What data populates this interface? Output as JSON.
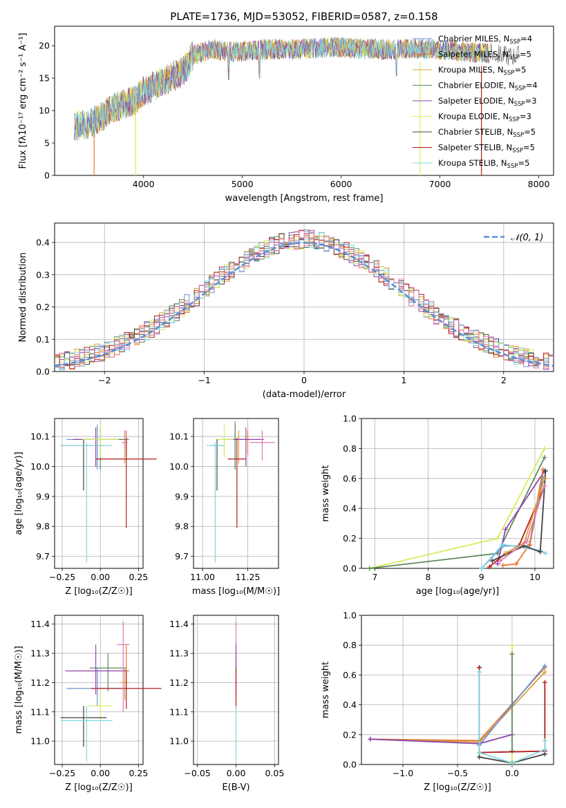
{
  "figure_title": "PLATE=1736, MJD=53052, FIBERID=0587, z=0.158",
  "colors": {
    "chabrier_miles": "#6b8fd6",
    "salpeter_miles": "#e8762d",
    "kroupa_miles": "#d9a03a",
    "chabrier_elodie": "#5d8a5d",
    "salpeter_elodie": "#8e44ad",
    "kroupa_elodie": "#d4ec5a",
    "chabrier_stelib": "#404040",
    "salpeter_stelib": "#b01c1c",
    "kroupa_stelib": "#7fd6de",
    "extra_pink": "#e07ab0",
    "gaussian": "#5b8ed6"
  },
  "chart_data": [
    {
      "id": "spectrum",
      "type": "line",
      "xlabel": "wavelength [Angstrom, rest frame]",
      "ylabel": "Flux [fλ10⁻¹⁷ erg cm⁻² s⁻¹ A⁻¹]",
      "xlim": [
        3100,
        8150
      ],
      "ylim": [
        0,
        23
      ],
      "xticks": [
        "4000",
        "5000",
        "6000",
        "7000",
        "8000"
      ],
      "yticks": [
        "0",
        "5",
        "10",
        "15",
        "20"
      ],
      "legend_position": "right",
      "data_envelope": {
        "x": [
          3300,
          3500,
          3700,
          3900,
          4000,
          4200,
          4400,
          4500,
          4700,
          4900,
          5100,
          5300,
          5500,
          5700,
          5900,
          6100,
          6300,
          6500,
          6700,
          6900,
          7100,
          7300,
          7500,
          7700
        ],
        "y": [
          7.5,
          8.2,
          10.5,
          11.5,
          13.0,
          14.5,
          16.0,
          18.5,
          19.5,
          19.0,
          19.3,
          19.5,
          19.4,
          19.6,
          19.8,
          19.6,
          19.5,
          19.4,
          19.6,
          19.5,
          19.3,
          19.0,
          18.8,
          18.5
        ]
      },
      "series": [
        {
          "name": "Chabrier MILES, N",
          "sub": "SSP",
          "suffix": "=4",
          "color_key": "chabrier_miles"
        },
        {
          "name": "Salpeter MILES, N",
          "sub": "SSP",
          "suffix": "=5",
          "color_key": "salpeter_miles"
        },
        {
          "name": "Kroupa MILES, N",
          "sub": "SSP",
          "suffix": "=5",
          "color_key": "kroupa_miles"
        },
        {
          "name": "Chabrier ELODIE, N",
          "sub": "SSP",
          "suffix": "=4",
          "color_key": "chabrier_elodie"
        },
        {
          "name": "Salpeter ELODIE, N",
          "sub": "SSP",
          "suffix": "=3",
          "color_key": "salpeter_elodie"
        },
        {
          "name": "Kroupa ELODIE, N",
          "sub": "SSP",
          "suffix": "=3",
          "color_key": "kroupa_elodie"
        },
        {
          "name": "Chabrier STELIB, N",
          "sub": "SSP",
          "suffix": "=5",
          "color_key": "chabrier_stelib"
        },
        {
          "name": "Salpeter STELIB, N",
          "sub": "SSP",
          "suffix": "=5",
          "color_key": "salpeter_stelib"
        },
        {
          "name": "Kroupa STELIB, N",
          "sub": "SSP",
          "suffix": "=5",
          "color_key": "kroupa_stelib"
        }
      ]
    },
    {
      "id": "residuals",
      "type": "line",
      "xlabel": "(data-model)/error",
      "ylabel": "Normed distribution",
      "xlim": [
        -2.5,
        2.5
      ],
      "ylim": [
        0,
        0.46
      ],
      "xticks": [
        "−2",
        "−1",
        "0",
        "1",
        "2"
      ],
      "yticks": [
        "0.0",
        "0.1",
        "0.2",
        "0.3",
        "0.4"
      ],
      "grid": true,
      "legend": "𝒩(0, 1)",
      "legend_position": "upper right",
      "bin_width": 0.1,
      "bin_start": -2.5,
      "base_heights": [
        0.03,
        0.03,
        0.03,
        0.04,
        0.04,
        0.05,
        0.05,
        0.06,
        0.07,
        0.08,
        0.09,
        0.1,
        0.11,
        0.12,
        0.13,
        0.15,
        0.17,
        0.18,
        0.19,
        0.2,
        0.22,
        0.23,
        0.25,
        0.26,
        0.28,
        0.29,
        0.31,
        0.32,
        0.33,
        0.34,
        0.35,
        0.36,
        0.37,
        0.37,
        0.38,
        0.38,
        0.39,
        0.39,
        0.39,
        0.39,
        0.4,
        0.39,
        0.39,
        0.39,
        0.38,
        0.38,
        0.37,
        0.37,
        0.36,
        0.35,
        0.34,
        0.33,
        0.32,
        0.31,
        0.29,
        0.28,
        0.26,
        0.25,
        0.23,
        0.22,
        0.2,
        0.19,
        0.18,
        0.17,
        0.15,
        0.14,
        0.12,
        0.11,
        0.1,
        0.09,
        0.08,
        0.07,
        0.07,
        0.06,
        0.05,
        0.05,
        0.04,
        0.04,
        0.03,
        0.03,
        0.03,
        0.03,
        0.02,
        0.02,
        0.02,
        0.02,
        0.02,
        0.02,
        0.02,
        0.02,
        0.02,
        0.02,
        0.02,
        0.02,
        0.02,
        0.02,
        0.02,
        0.02,
        0.02,
        0.02
      ],
      "gaussian": {
        "mean": 0,
        "sigma": 1
      }
    },
    {
      "id": "age_vs_Z",
      "type": "scatter",
      "xlabel": "Z [log₁₀(Z/Z☉)]",
      "ylabel": "age  [log₁₀(age/yr)]",
      "xlim": [
        -0.3,
        0.28
      ],
      "ylim": [
        9.66,
        10.16
      ],
      "xticks": [
        "−0.25",
        "0.00",
        "0.25"
      ],
      "yticks": [
        "9.7",
        "9.8",
        "9.9",
        "10.0",
        "10.1"
      ],
      "grid": true,
      "points": [
        {
          "x": -0.02,
          "y": 10.09,
          "xerr": 0.2,
          "yerr_lo": 0.1,
          "yerr_hi": 0.05,
          "color_key": "chabrier_miles"
        },
        {
          "x": 0.17,
          "y": 10.09,
          "xerr": 0.02,
          "yerr_lo": 0.05,
          "yerr_hi": 0.03,
          "color_key": "salpeter_miles"
        },
        {
          "x": 0.16,
          "y": 10.09,
          "xerr": 0.03,
          "yerr_lo": 0.08,
          "yerr_hi": 0.03,
          "color_key": "kroupa_miles"
        },
        {
          "x": 0.0,
          "y": 10.09,
          "xerr": 0.18,
          "yerr_lo": 0.1,
          "yerr_hi": 0.04,
          "color_key": "chabrier_elodie"
        },
        {
          "x": -0.03,
          "y": 10.09,
          "xerr": 0.15,
          "yerr_lo": 0.09,
          "yerr_hi": 0.04,
          "color_key": "salpeter_elodie"
        },
        {
          "x": 0.0,
          "y": 10.09,
          "xerr": 0.12,
          "yerr_lo": 0.06,
          "yerr_hi": 0.05,
          "color_key": "kroupa_elodie"
        },
        {
          "x": -0.11,
          "y": 10.07,
          "xerr": 0.15,
          "yerr_lo": 0.15,
          "yerr_hi": 0.02,
          "color_key": "chabrier_stelib"
        },
        {
          "x": 0.17,
          "y": 10.025,
          "xerr": 0.2,
          "yerr_lo": 0.23,
          "yerr_hi": 0.07,
          "color_key": "salpeter_stelib"
        },
        {
          "x": -0.09,
          "y": 10.07,
          "xerr": 0.17,
          "yerr_lo": 0.39,
          "yerr_hi": 0.01,
          "color_key": "kroupa_stelib"
        },
        {
          "x": 0.16,
          "y": 10.08,
          "xerr": 0.02,
          "yerr_lo": 0.02,
          "yerr_hi": 0.04,
          "color_key": "extra_pink"
        }
      ]
    },
    {
      "id": "age_vs_mass",
      "type": "scatter",
      "xlabel": "mass [log₁₀(M/M☉)]",
      "ylabel": "",
      "xlim": [
        10.95,
        11.42
      ],
      "ylim": [
        9.66,
        10.16
      ],
      "xticks": [
        "11.00",
        "11.25"
      ],
      "yticks": [
        "9.7",
        "9.8",
        "9.9",
        "10.0",
        "10.1"
      ],
      "grid": true,
      "points": [
        {
          "x": 11.18,
          "y": 10.09,
          "xerr": 0.08,
          "yerr_lo": 0.1,
          "yerr_hi": 0.05,
          "color_key": "chabrier_miles"
        },
        {
          "x": 11.25,
          "y": 10.09,
          "xerr": 0.07,
          "yerr_lo": 0.05,
          "yerr_hi": 0.03,
          "color_key": "salpeter_miles"
        },
        {
          "x": 11.2,
          "y": 10.09,
          "xerr": 0.06,
          "yerr_lo": 0.08,
          "yerr_hi": 0.03,
          "color_key": "kroupa_miles"
        },
        {
          "x": 11.18,
          "y": 10.09,
          "xerr": 0.07,
          "yerr_lo": 0.1,
          "yerr_hi": 0.06,
          "color_key": "chabrier_elodie"
        },
        {
          "x": 11.24,
          "y": 10.09,
          "xerr": 0.1,
          "yerr_lo": 0.09,
          "yerr_hi": 0.04,
          "color_key": "salpeter_elodie"
        },
        {
          "x": 11.12,
          "y": 10.09,
          "xerr": 0.05,
          "yerr_lo": 0.06,
          "yerr_hi": 0.05,
          "color_key": "kroupa_elodie"
        },
        {
          "x": 11.08,
          "y": 10.07,
          "xerr": 0.04,
          "yerr_lo": 0.15,
          "yerr_hi": 0.02,
          "color_key": "chabrier_stelib"
        },
        {
          "x": 11.19,
          "y": 10.025,
          "xerr": 0.05,
          "yerr_lo": 0.23,
          "yerr_hi": 0.07,
          "color_key": "salpeter_stelib"
        },
        {
          "x": 11.07,
          "y": 10.07,
          "xerr": 0.05,
          "yerr_lo": 0.39,
          "yerr_hi": 0.01,
          "color_key": "kroupa_stelib"
        },
        {
          "x": 11.33,
          "y": 10.08,
          "xerr": 0.07,
          "yerr_lo": 0.06,
          "yerr_hi": 0.04,
          "color_key": "extra_pink"
        }
      ]
    },
    {
      "id": "massweight_vs_age",
      "type": "line",
      "xlabel": "age  [log₁₀(age/yr)]",
      "ylabel": "mass weight",
      "xlim": [
        6.75,
        10.35
      ],
      "ylim": [
        0,
        1.0
      ],
      "xticks": [
        "7",
        "8",
        "9",
        "10"
      ],
      "yticks": [
        "0.0",
        "0.2",
        "0.4",
        "0.6",
        "0.8",
        "1.0"
      ],
      "grid": true,
      "series": [
        {
          "color_key": "kroupa_elodie",
          "x": [
            6.9,
            9.3,
            10.18
          ],
          "y": [
            0.0,
            0.2,
            0.8
          ]
        },
        {
          "color_key": "chabrier_elodie",
          "x": [
            6.9,
            9.3,
            10.18
          ],
          "y": [
            0.0,
            0.1,
            0.74
          ]
        },
        {
          "color_key": "salpeter_elodie",
          "x": [
            9.3,
            9.45,
            10.18
          ],
          "y": [
            0.03,
            0.26,
            0.65
          ]
        },
        {
          "color_key": "salpeter_stelib",
          "x": [
            9.15,
            9.45,
            9.7,
            10.18
          ],
          "y": [
            0.01,
            0.1,
            0.15,
            0.55
          ]
        },
        {
          "color_key": "chabrier_miles",
          "x": [
            9.0,
            9.4,
            9.9,
            10.15
          ],
          "y": [
            0.0,
            0.15,
            0.15,
            0.61
          ]
        },
        {
          "color_key": "salpeter_miles",
          "x": [
            9.4,
            9.65,
            9.9,
            10.15
          ],
          "y": [
            0.02,
            0.03,
            0.16,
            0.66
          ]
        },
        {
          "color_key": "kroupa_stelib",
          "x": [
            9.0,
            9.4,
            10.1,
            10.2
          ],
          "y": [
            0.0,
            0.16,
            0.12,
            0.1
          ]
        },
        {
          "color_key": "chabrier_stelib",
          "x": [
            9.2,
            9.8,
            10.1,
            10.2
          ],
          "y": [
            0.05,
            0.15,
            0.11,
            0.65
          ]
        },
        {
          "color_key": "kroupa_miles",
          "x": [
            9.45,
            9.8,
            10.18
          ],
          "y": [
            0.1,
            0.17,
            0.6
          ]
        },
        {
          "color_key": "extra_pink",
          "x": [
            9.35,
            9.85,
            10.18
          ],
          "y": [
            0.05,
            0.18,
            0.55
          ]
        }
      ]
    },
    {
      "id": "mass_vs_Z",
      "type": "scatter",
      "xlabel": "Z [log₁₀(Z/Z☉)]",
      "ylabel": "mass [log₁₀(M/M☉)]",
      "xlim": [
        -0.3,
        0.28
      ],
      "ylim": [
        10.92,
        11.43
      ],
      "xticks": [
        "−0.25",
        "0.00",
        "0.25"
      ],
      "yticks": [
        "11.0",
        "11.1",
        "11.2",
        "11.3",
        "11.4"
      ],
      "grid": true,
      "points": [
        {
          "x": -0.02,
          "y": 11.18,
          "xerr": 0.2,
          "yerr_lo": 0.06,
          "yerr_hi": 0.07,
          "color_key": "chabrier_miles"
        },
        {
          "x": 0.17,
          "y": 11.24,
          "xerr": 0.02,
          "yerr_lo": 0.05,
          "yerr_hi": 0.09,
          "color_key": "salpeter_miles"
        },
        {
          "x": 0.16,
          "y": 11.2,
          "xerr": 0.03,
          "yerr_lo": 0.06,
          "yerr_hi": 0.05,
          "color_key": "kroupa_miles"
        },
        {
          "x": 0.05,
          "y": 11.25,
          "xerr": 0.12,
          "yerr_lo": 0.08,
          "yerr_hi": 0.05,
          "color_key": "chabrier_elodie"
        },
        {
          "x": -0.03,
          "y": 11.24,
          "xerr": 0.2,
          "yerr_lo": 0.08,
          "yerr_hi": 0.09,
          "color_key": "salpeter_elodie"
        },
        {
          "x": 0.0,
          "y": 11.12,
          "xerr": 0.08,
          "yerr_lo": 0.05,
          "yerr_hi": 0.05,
          "color_key": "kroupa_elodie"
        },
        {
          "x": -0.11,
          "y": 11.08,
          "xerr": 0.15,
          "yerr_lo": 0.1,
          "yerr_hi": 0.04,
          "color_key": "chabrier_stelib"
        },
        {
          "x": 0.17,
          "y": 11.18,
          "xerr": 0.23,
          "yerr_lo": 0.07,
          "yerr_hi": 0.06,
          "color_key": "salpeter_stelib"
        },
        {
          "x": -0.09,
          "y": 11.07,
          "xerr": 0.17,
          "yerr_lo": 0.14,
          "yerr_hi": 0.05,
          "color_key": "kroupa_stelib"
        },
        {
          "x": 0.15,
          "y": 11.33,
          "xerr": 0.04,
          "yerr_lo": 0.23,
          "yerr_hi": 0.08,
          "color_key": "extra_pink"
        }
      ]
    },
    {
      "id": "mass_vs_ebv",
      "type": "scatter",
      "xlabel": "E(B-V)",
      "ylabel": "",
      "xlim": [
        -0.055,
        0.055
      ],
      "ylim": [
        10.92,
        11.43
      ],
      "xticks": [
        "−0.05",
        "0.00",
        "0.05"
      ],
      "yticks": [
        "11.0",
        "11.1",
        "11.2",
        "11.3",
        "11.4"
      ],
      "grid": true,
      "points": [
        {
          "x": 0.0,
          "y": 11.33,
          "xerr": 0,
          "yerr_lo": 0.09,
          "yerr_hi": 0.08,
          "color_key": "extra_pink"
        },
        {
          "x": 0.0,
          "y": 11.24,
          "xerr": 0,
          "yerr_lo": 0.08,
          "yerr_hi": 0.09,
          "color_key": "salpeter_elodie"
        },
        {
          "x": 0.0,
          "y": 11.18,
          "xerr": 0,
          "yerr_lo": 0.07,
          "yerr_hi": 0.07,
          "color_key": "salpeter_stelib"
        },
        {
          "x": 0.0,
          "y": 11.07,
          "xerr": 0,
          "yerr_lo": 0.13,
          "yerr_hi": 0.05,
          "color_key": "kroupa_stelib"
        }
      ]
    },
    {
      "id": "massweight_vs_Z",
      "type": "line",
      "xlabel": "Z [log₁₀(Z/Z☉)]",
      "ylabel": "mass weight",
      "xlim": [
        -1.38,
        0.38
      ],
      "ylim": [
        0,
        1.0
      ],
      "xticks": [
        "−1.0",
        "−0.5",
        "0.0"
      ],
      "yticks": [
        "0.0",
        "0.2",
        "0.4",
        "0.6",
        "0.8",
        "1.0"
      ],
      "grid": true,
      "series": [
        {
          "color_key": "salpeter_miles",
          "x": [
            -1.3,
            -0.3,
            0.3
          ],
          "y": [
            0.17,
            0.16,
            0.65
          ]
        },
        {
          "color_key": "kroupa_miles",
          "x": [
            -1.3,
            -0.3,
            0.3
          ],
          "y": [
            0.17,
            0.15,
            0.62
          ]
        },
        {
          "color_key": "salpeter_elodie",
          "x": [
            -1.3,
            -0.3,
            0.0
          ],
          "y": [
            0.17,
            0.14,
            0.2
          ]
        },
        {
          "color_key": "chabrier_miles",
          "x": [
            -0.3,
            0.0,
            0.3
          ],
          "y": [
            0.13,
            0.4,
            0.66
          ]
        },
        {
          "color_key": "kroupa_elodie",
          "x": [
            0.0,
            0.0
          ],
          "y": [
            0.02,
            0.8
          ]
        },
        {
          "color_key": "chabrier_elodie",
          "x": [
            0.0,
            0.0
          ],
          "y": [
            0.09,
            0.74
          ]
        },
        {
          "color_key": "chabrier_stelib",
          "x": [
            -0.3,
            -0.3,
            0.0,
            0.3
          ],
          "y": [
            0.65,
            0.05,
            0.01,
            0.07
          ]
        },
        {
          "color_key": "salpeter_stelib",
          "x": [
            -0.3,
            -0.3,
            0.3,
            0.3
          ],
          "y": [
            0.65,
            0.08,
            0.09,
            0.55
          ]
        },
        {
          "color_key": "kroupa_stelib",
          "x": [
            -0.3,
            -0.3,
            0.0,
            0.3,
            0.3
          ],
          "y": [
            0.62,
            0.08,
            0.01,
            0.1,
            0.16
          ]
        }
      ]
    }
  ]
}
